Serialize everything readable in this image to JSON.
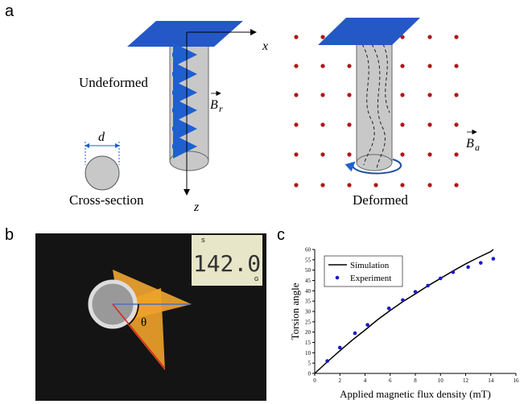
{
  "panel_labels": [
    "a",
    "b",
    "c"
  ],
  "panel_a": {
    "x_axis": "x",
    "z_axis": "z",
    "undeformed": "Undeformed",
    "deformed": "Deformed",
    "cross_section": "Cross-section",
    "diameter": "d",
    "field_r": {
      "symbol": "B",
      "subscript": "r"
    },
    "field_a": {
      "symbol": "B",
      "subscript": "a"
    }
  },
  "panel_b": {
    "display": "142.0",
    "display_s": "S",
    "display_g": "G",
    "angle": "θ"
  },
  "chart_data": {
    "type": "line",
    "x_label": "Applied magnetic flux density (mT)",
    "y_label": "Torsion angle",
    "xlim": [
      0,
      16
    ],
    "xticks": [
      0,
      2,
      4,
      6,
      8,
      10,
      12,
      14,
      16
    ],
    "ylim": [
      0,
      60
    ],
    "yticks": [
      0,
      5,
      10,
      15,
      20,
      25,
      30,
      35,
      40,
      45,
      50,
      55,
      60
    ],
    "legend": "upper left",
    "grid": false,
    "series": [
      {
        "name": "Simulation",
        "color": "#000000",
        "style": "line",
        "x": [
          0,
          1,
          2,
          3,
          4,
          5,
          6,
          7,
          8,
          9,
          10,
          11,
          12,
          13,
          14,
          14.2
        ],
        "values": [
          0,
          5.6,
          11,
          16.2,
          21,
          26,
          30.5,
          34.7,
          38.5,
          42.4,
          46,
          49.6,
          53,
          56.1,
          59,
          60
        ]
      },
      {
        "name": "Experiment",
        "color": "#1a1acc",
        "style": "marker",
        "x": [
          1,
          2,
          3.2,
          4.2,
          5.9,
          7,
          8,
          9,
          10,
          11,
          12.2,
          13.2,
          14.2
        ],
        "values": [
          6,
          12.5,
          19.5,
          23.5,
          31.5,
          35.5,
          39.5,
          42.5,
          46,
          49,
          51.5,
          53.5,
          55.5
        ]
      }
    ]
  }
}
